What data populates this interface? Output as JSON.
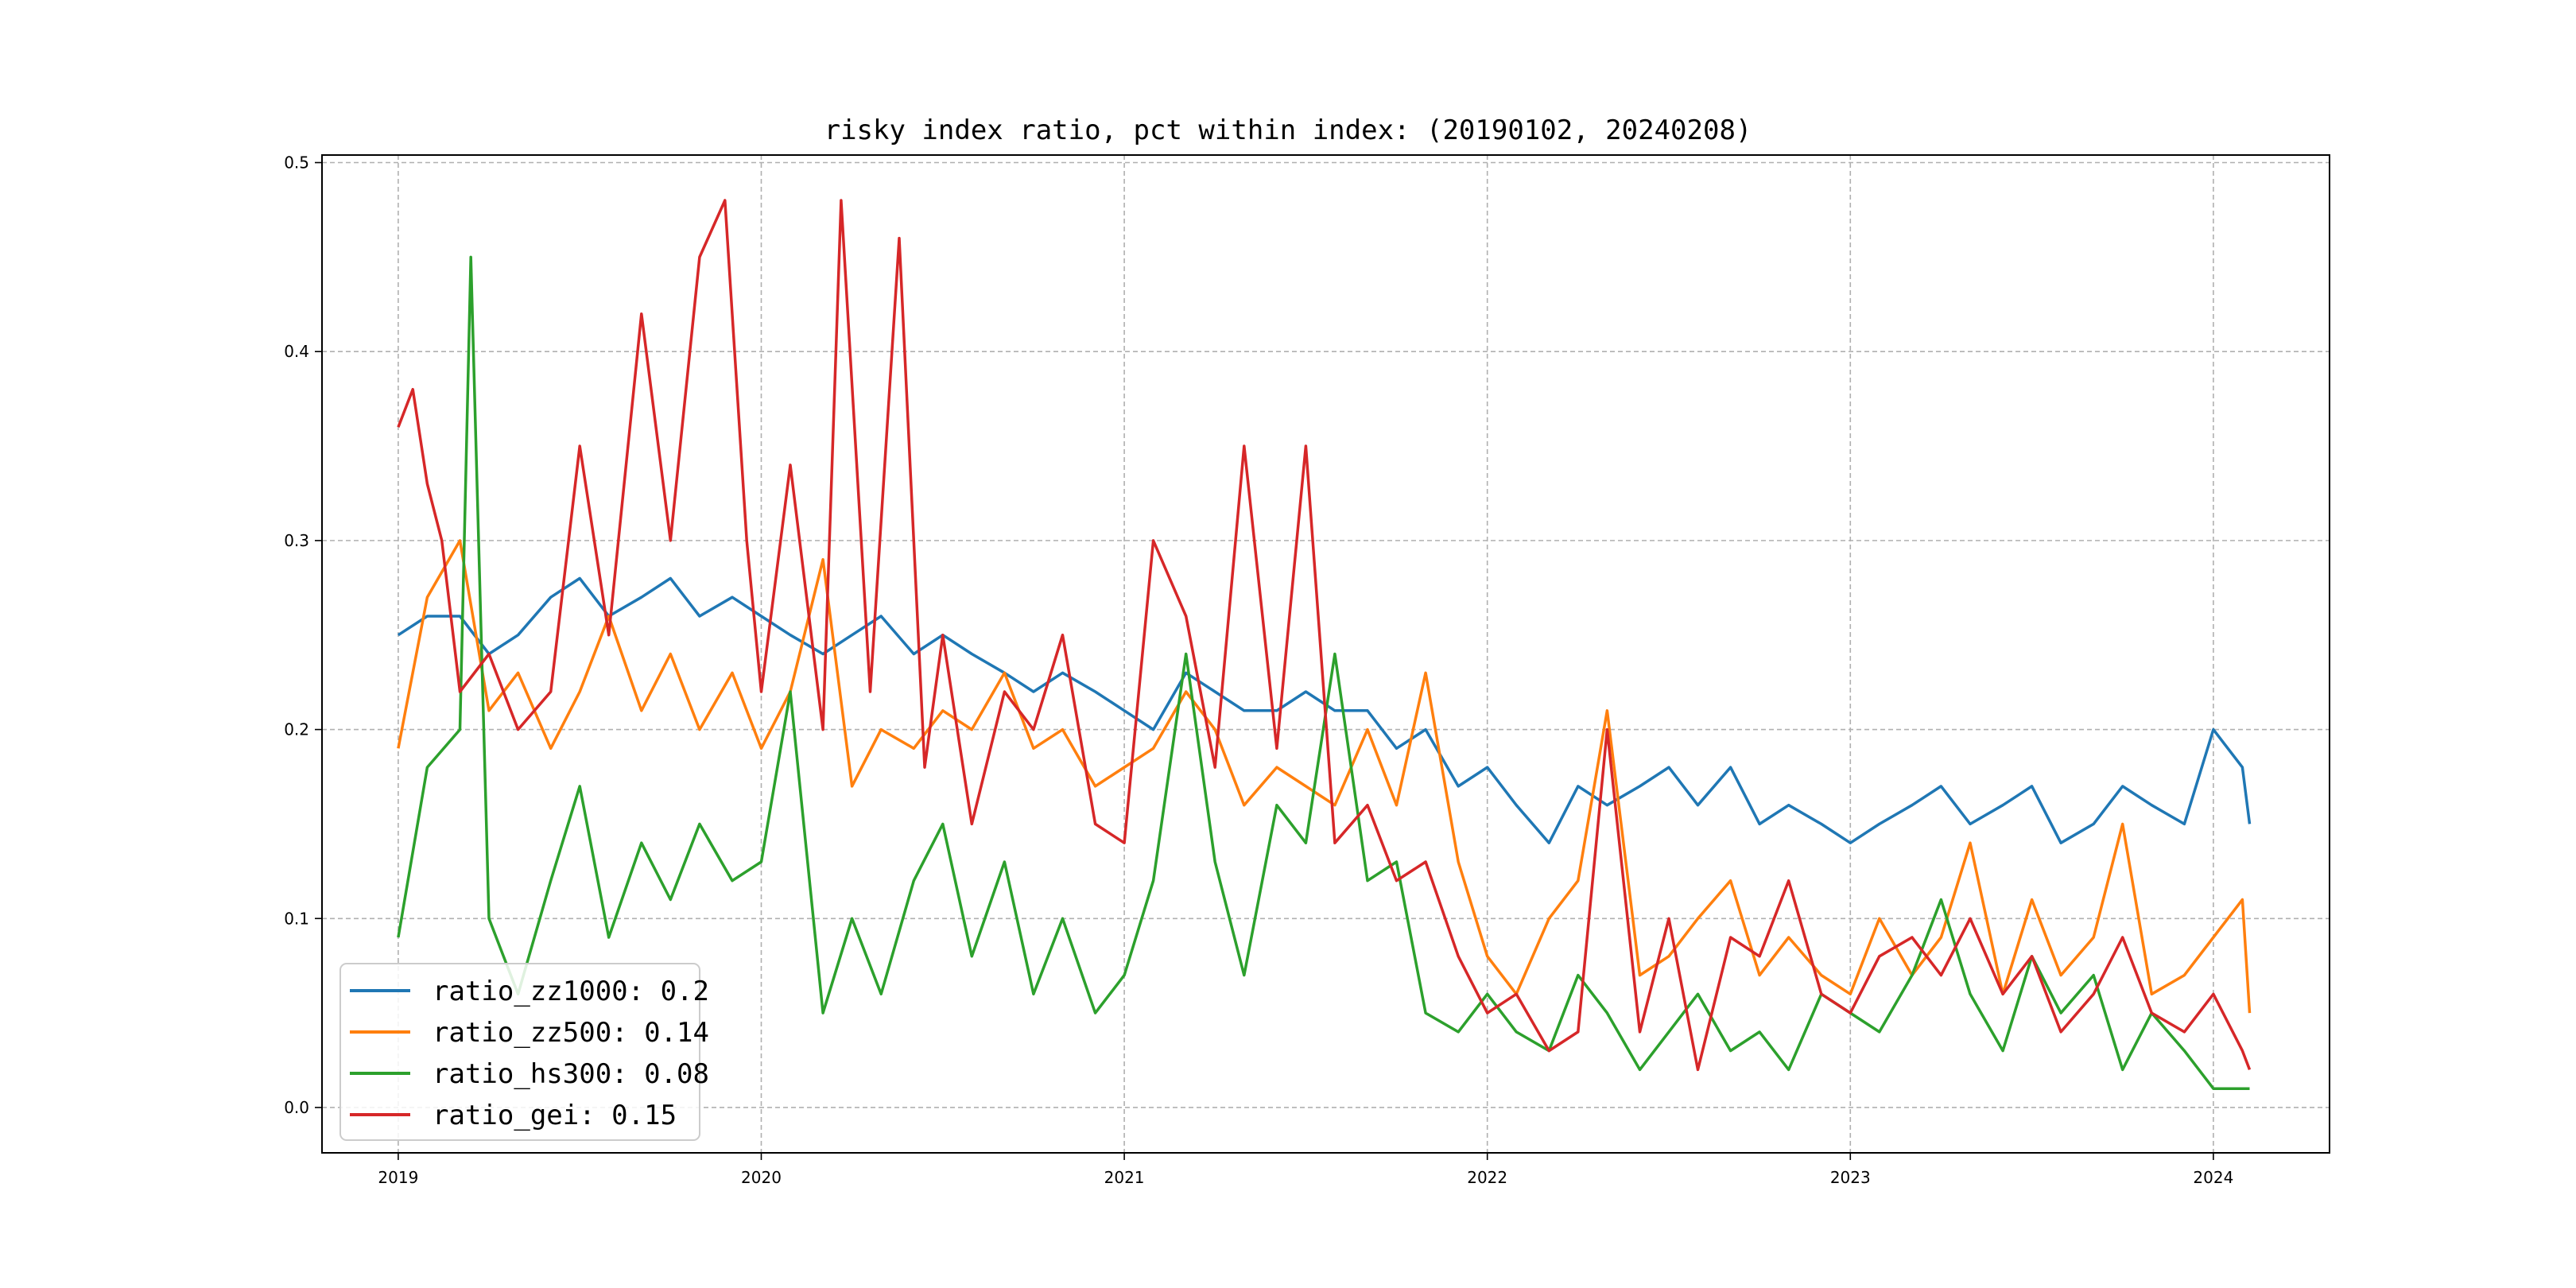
{
  "chart_data": {
    "type": "line",
    "title": "risky index ratio, pct within index: (20190102, 20240208)",
    "xlabel": "",
    "ylabel": "",
    "x_range": [
      "2019-01-02",
      "2024-02-08"
    ],
    "xlim": [
      2018.79,
      2024.32
    ],
    "ylim": [
      -0.024,
      0.504
    ],
    "x_ticks": [
      2019,
      2020,
      2021,
      2022,
      2023,
      2024
    ],
    "x_tick_labels": [
      "2019",
      "2020",
      "2021",
      "2022",
      "2023",
      "2024"
    ],
    "y_ticks": [
      0.0,
      0.1,
      0.2,
      0.3,
      0.4,
      0.5
    ],
    "y_tick_labels": [
      "0.0",
      "0.1",
      "0.2",
      "0.3",
      "0.4",
      "0.5"
    ],
    "grid": true,
    "legend_position": "lower-left",
    "series": [
      {
        "name": "ratio_zz1000",
        "legend_label": "ratio_zz1000: 0.2",
        "color": "#1f77b4",
        "x": [
          2019.0,
          2019.08,
          2019.17,
          2019.25,
          2019.33,
          2019.42,
          2019.5,
          2019.58,
          2019.67,
          2019.75,
          2019.83,
          2019.92,
          2020.0,
          2020.08,
          2020.17,
          2020.25,
          2020.33,
          2020.42,
          2020.5,
          2020.58,
          2020.67,
          2020.75,
          2020.83,
          2020.92,
          2021.0,
          2021.08,
          2021.17,
          2021.25,
          2021.33,
          2021.42,
          2021.5,
          2021.58,
          2021.67,
          2021.75,
          2021.83,
          2021.92,
          2022.0,
          2022.08,
          2022.17,
          2022.25,
          2022.33,
          2022.42,
          2022.5,
          2022.58,
          2022.67,
          2022.75,
          2022.83,
          2022.92,
          2023.0,
          2023.08,
          2023.17,
          2023.25,
          2023.33,
          2023.42,
          2023.5,
          2023.58,
          2023.67,
          2023.75,
          2023.83,
          2023.92,
          2024.0,
          2024.08,
          2024.1
        ],
        "values": [
          0.25,
          0.26,
          0.26,
          0.24,
          0.25,
          0.27,
          0.28,
          0.26,
          0.27,
          0.28,
          0.26,
          0.27,
          0.26,
          0.25,
          0.24,
          0.25,
          0.26,
          0.24,
          0.25,
          0.24,
          0.23,
          0.22,
          0.23,
          0.22,
          0.21,
          0.2,
          0.23,
          0.22,
          0.21,
          0.21,
          0.22,
          0.21,
          0.21,
          0.19,
          0.2,
          0.17,
          0.18,
          0.16,
          0.14,
          0.17,
          0.16,
          0.17,
          0.18,
          0.16,
          0.18,
          0.15,
          0.16,
          0.15,
          0.14,
          0.15,
          0.16,
          0.17,
          0.15,
          0.16,
          0.17,
          0.14,
          0.15,
          0.17,
          0.16,
          0.15,
          0.2,
          0.18,
          0.15
        ]
      },
      {
        "name": "ratio_zz500",
        "legend_label": "ratio_zz500: 0.14",
        "color": "#ff7f0e",
        "x": [
          2019.0,
          2019.08,
          2019.17,
          2019.25,
          2019.33,
          2019.42,
          2019.5,
          2019.58,
          2019.67,
          2019.75,
          2019.83,
          2019.92,
          2020.0,
          2020.08,
          2020.17,
          2020.25,
          2020.33,
          2020.42,
          2020.5,
          2020.58,
          2020.67,
          2020.75,
          2020.83,
          2020.92,
          2021.0,
          2021.08,
          2021.17,
          2021.25,
          2021.33,
          2021.42,
          2021.5,
          2021.58,
          2021.67,
          2021.75,
          2021.83,
          2021.92,
          2022.0,
          2022.08,
          2022.17,
          2022.25,
          2022.33,
          2022.42,
          2022.5,
          2022.58,
          2022.67,
          2022.75,
          2022.83,
          2022.92,
          2023.0,
          2023.08,
          2023.17,
          2023.25,
          2023.33,
          2023.42,
          2023.5,
          2023.58,
          2023.67,
          2023.75,
          2023.83,
          2023.92,
          2024.0,
          2024.08,
          2024.1
        ],
        "values": [
          0.19,
          0.27,
          0.3,
          0.21,
          0.23,
          0.19,
          0.22,
          0.26,
          0.21,
          0.24,
          0.2,
          0.23,
          0.19,
          0.22,
          0.29,
          0.17,
          0.2,
          0.19,
          0.21,
          0.2,
          0.23,
          0.19,
          0.2,
          0.17,
          0.18,
          0.19,
          0.22,
          0.2,
          0.16,
          0.18,
          0.17,
          0.16,
          0.2,
          0.16,
          0.23,
          0.13,
          0.08,
          0.06,
          0.1,
          0.12,
          0.21,
          0.07,
          0.08,
          0.1,
          0.12,
          0.07,
          0.09,
          0.07,
          0.06,
          0.1,
          0.07,
          0.09,
          0.14,
          0.06,
          0.11,
          0.07,
          0.09,
          0.15,
          0.06,
          0.07,
          0.09,
          0.11,
          0.05
        ]
      },
      {
        "name": "ratio_hs300",
        "legend_label": "ratio_hs300: 0.08",
        "color": "#2ca02c",
        "x": [
          2019.0,
          2019.08,
          2019.17,
          2019.2,
          2019.25,
          2019.33,
          2019.42,
          2019.5,
          2019.58,
          2019.67,
          2019.75,
          2019.83,
          2019.92,
          2020.0,
          2020.08,
          2020.17,
          2020.25,
          2020.33,
          2020.42,
          2020.5,
          2020.58,
          2020.67,
          2020.75,
          2020.83,
          2020.92,
          2021.0,
          2021.08,
          2021.17,
          2021.25,
          2021.33,
          2021.42,
          2021.5,
          2021.58,
          2021.67,
          2021.75,
          2021.83,
          2021.92,
          2022.0,
          2022.08,
          2022.17,
          2022.25,
          2022.33,
          2022.42,
          2022.5,
          2022.58,
          2022.67,
          2022.75,
          2022.83,
          2022.92,
          2023.0,
          2023.08,
          2023.17,
          2023.25,
          2023.33,
          2023.42,
          2023.5,
          2023.58,
          2023.67,
          2023.75,
          2023.83,
          2023.92,
          2024.0,
          2024.08,
          2024.1
        ],
        "values": [
          0.09,
          0.18,
          0.2,
          0.45,
          0.1,
          0.06,
          0.12,
          0.17,
          0.09,
          0.14,
          0.11,
          0.15,
          0.12,
          0.13,
          0.22,
          0.05,
          0.1,
          0.06,
          0.12,
          0.15,
          0.08,
          0.13,
          0.06,
          0.1,
          0.05,
          0.07,
          0.12,
          0.24,
          0.13,
          0.07,
          0.16,
          0.14,
          0.24,
          0.12,
          0.13,
          0.05,
          0.04,
          0.06,
          0.04,
          0.03,
          0.07,
          0.05,
          0.02,
          0.04,
          0.06,
          0.03,
          0.04,
          0.02,
          0.06,
          0.05,
          0.04,
          0.07,
          0.11,
          0.06,
          0.03,
          0.08,
          0.05,
          0.07,
          0.02,
          0.05,
          0.03,
          0.01,
          0.01,
          0.01
        ]
      },
      {
        "name": "ratio_gei",
        "legend_label": "ratio_gei: 0.15",
        "color": "#d62728",
        "x": [
          2019.0,
          2019.04,
          2019.08,
          2019.12,
          2019.17,
          2019.25,
          2019.33,
          2019.42,
          2019.5,
          2019.58,
          2019.67,
          2019.75,
          2019.83,
          2019.9,
          2019.96,
          2020.0,
          2020.08,
          2020.17,
          2020.22,
          2020.3,
          2020.38,
          2020.45,
          2020.5,
          2020.58,
          2020.67,
          2020.75,
          2020.83,
          2020.92,
          2021.0,
          2021.08,
          2021.17,
          2021.25,
          2021.33,
          2021.42,
          2021.5,
          2021.58,
          2021.67,
          2021.75,
          2021.83,
          2021.92,
          2022.0,
          2022.08,
          2022.17,
          2022.25,
          2022.33,
          2022.42,
          2022.5,
          2022.58,
          2022.67,
          2022.75,
          2022.83,
          2022.92,
          2023.0,
          2023.08,
          2023.17,
          2023.25,
          2023.33,
          2023.42,
          2023.5,
          2023.58,
          2023.67,
          2023.75,
          2023.83,
          2023.92,
          2024.0,
          2024.08,
          2024.1
        ],
        "values": [
          0.36,
          0.38,
          0.33,
          0.3,
          0.22,
          0.24,
          0.2,
          0.22,
          0.35,
          0.25,
          0.42,
          0.3,
          0.45,
          0.48,
          0.3,
          0.22,
          0.34,
          0.2,
          0.48,
          0.22,
          0.46,
          0.18,
          0.25,
          0.15,
          0.22,
          0.2,
          0.25,
          0.15,
          0.14,
          0.3,
          0.26,
          0.18,
          0.35,
          0.19,
          0.35,
          0.14,
          0.16,
          0.12,
          0.13,
          0.08,
          0.05,
          0.06,
          0.03,
          0.04,
          0.2,
          0.04,
          0.1,
          0.02,
          0.09,
          0.08,
          0.12,
          0.06,
          0.05,
          0.08,
          0.09,
          0.07,
          0.1,
          0.06,
          0.08,
          0.04,
          0.06,
          0.09,
          0.05,
          0.04,
          0.06,
          0.03,
          0.02
        ]
      }
    ]
  }
}
